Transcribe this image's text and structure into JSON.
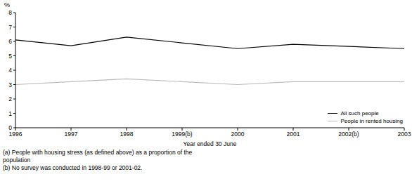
{
  "chart_data": {
    "type": "line",
    "y_label": "%",
    "x_label": "Year ended 30 June",
    "categories": [
      "1996",
      "1997",
      "1998",
      "1999(b)",
      "2000",
      "2001",
      "2002(b)",
      "2003"
    ],
    "series": [
      {
        "name": "All such people",
        "color": "#000000",
        "values": [
          6.1,
          5.7,
          6.3,
          null,
          5.5,
          5.8,
          null,
          5.5
        ]
      },
      {
        "name": "People in rented housing",
        "color": "#bbbbbb",
        "values": [
          3.0,
          3.2,
          3.4,
          null,
          3.0,
          3.2,
          null,
          3.2
        ]
      }
    ],
    "ylim": [
      0,
      8
    ],
    "yticks": [
      0,
      1,
      2,
      3,
      4,
      5,
      6,
      7,
      8
    ],
    "grid": false,
    "legend": "lower right",
    "footnotes": [
      "(a) People with housing stress (as defined above) as a proportion of the population",
      "(b) No survey was conducted in 1998-99 or 2001-02."
    ]
  }
}
